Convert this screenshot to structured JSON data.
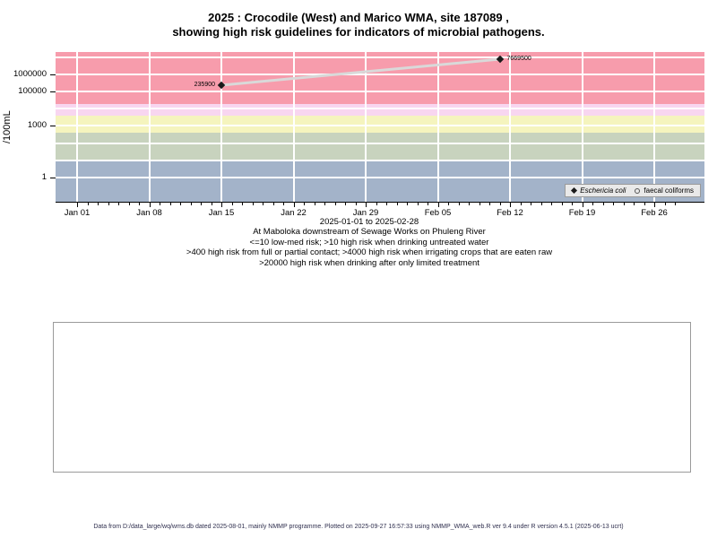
{
  "title": {
    "line1": "2025 : Crocodile (West) and Marico WMA, site 187089 ,",
    "line2": "showing high risk guidelines for indicators of microbial pathogens."
  },
  "chart_data": {
    "type": "scatter",
    "title": "2025 : Crocodile (West) and Marico WMA, site 187089 , showing high risk guidelines for indicators of microbial pathogens.",
    "ylabel": "/100mL",
    "y_scale": "log10",
    "grid": true,
    "y_tick_labels": [
      {
        "value": 1000000,
        "label": "1000000"
      },
      {
        "value": 100000,
        "label": "100000"
      },
      {
        "value": 1000,
        "label": "1000"
      },
      {
        "value": 1,
        "label": "1"
      }
    ],
    "x_ticks": [
      {
        "day": 0,
        "label": "Jan 01"
      },
      {
        "day": 7,
        "label": "Jan 08"
      },
      {
        "day": 14,
        "label": "Jan 15"
      },
      {
        "day": 21,
        "label": "Jan 22"
      },
      {
        "day": 28,
        "label": "Jan 29"
      },
      {
        "day": 35,
        "label": "Feb 05"
      },
      {
        "day": 42,
        "label": "Feb 12"
      },
      {
        "day": 49,
        "label": "Feb 19"
      },
      {
        "day": 56,
        "label": "Feb 26"
      }
    ],
    "x_minor_tick_days": 59,
    "x_range_label": "2025-01-01 to 2025-02-28",
    "risk_bands": [
      {
        "name": "high risk when drinking after only limited treatment",
        "threshold": ">20000",
        "color": "#F79CAC",
        "from": 20000,
        "to": null
      },
      {
        "name": "high risk when irrigating crops that are eaten raw",
        "threshold": ">4000",
        "color": "#F8D6F0",
        "from": 4000,
        "to": 20000
      },
      {
        "name": "high risk from full or partial contact",
        "threshold": ">400",
        "color": "#F5F4BE",
        "from": 400,
        "to": 4000
      },
      {
        "name": "high risk when drinking untreated water",
        "threshold": ">10",
        "color": "#C8D3BE",
        "from": 10,
        "to": 400
      },
      {
        "name": "low-med risk",
        "threshold": "<=10",
        "color": "#A3B3C9",
        "from": null,
        "to": 10
      }
    ],
    "series": [
      {
        "name": "Eschericia coli",
        "marker": "diamond",
        "line_color": "#D9D9D9",
        "points": [
          {
            "day": 14,
            "value": 235900,
            "label": "235900",
            "label_side": "left"
          },
          {
            "day": 41,
            "value": 7669500,
            "label": "7669500",
            "label_side": "right"
          }
        ]
      },
      {
        "name": "faecal coliforms",
        "marker": "open-circle",
        "points": []
      }
    ],
    "legend": {
      "position": "bottom-right",
      "items": [
        {
          "marker": "diamond",
          "label": "Eschericia coli"
        },
        {
          "marker": "open-circle",
          "label": "faecal coliforms"
        }
      ]
    }
  },
  "notes": {
    "line1": "At Maboloka downstream of Sewage Works on Phuleng River",
    "line2": "<=10 low-med risk; >10 high risk when drinking untreated water",
    "line3": ">400 high risk from full or partial contact; >4000 high risk when irrigating crops that are eaten raw",
    "line4": ">20000 high risk when drinking after only limited treatment"
  },
  "footer": {
    "text": "Data from D:/data_large/wq/wms.db dated 2025-08-01, mainly NMMP programme. Plotted on 2025-09-27 16:57:33 using NMMP_WMA_web.R ver 9.4 under R version 4.5.1 (2025-06-13 ucrt)",
    "color": "#30304f"
  }
}
